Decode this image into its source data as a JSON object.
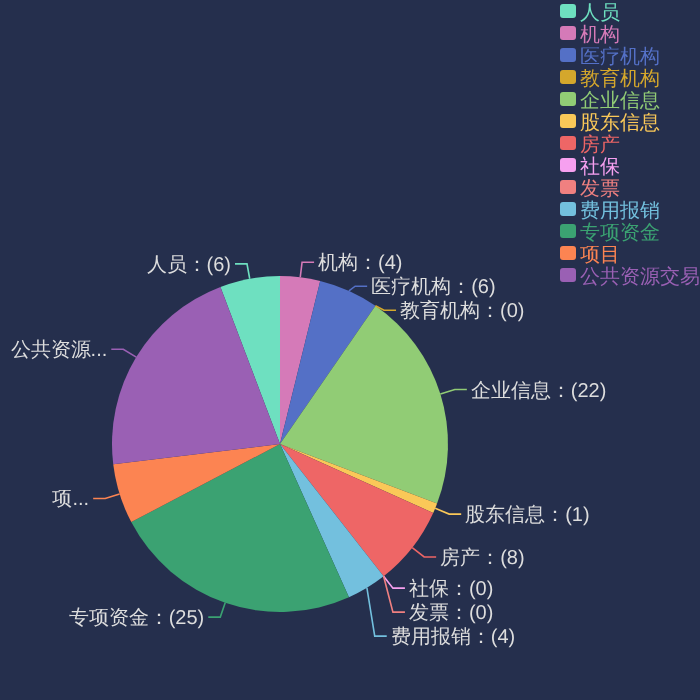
{
  "chart_data": {
    "type": "pie",
    "categories": [
      "人员",
      "机构",
      "医疗机构",
      "教育机构",
      "企业信息",
      "股东信息",
      "房产",
      "社保",
      "发票",
      "费用报销",
      "专项资金",
      "项目",
      "公共资源交易"
    ],
    "values": [
      6,
      4,
      6,
      0,
      22,
      1,
      8,
      0,
      0,
      4,
      25,
      6,
      22
    ],
    "colors": [
      "#6ee0c0",
      "#d57ab8",
      "#5470c6",
      "#d4a72c",
      "#91cc75",
      "#fac858",
      "#ee6666",
      "#f6a0f0",
      "#f08080",
      "#73c0de",
      "#3ba272",
      "#fc8452",
      "#9a60b4"
    ],
    "value_labels": [
      "人员：(6)",
      "机构：(4)",
      "医疗机构：(6)",
      "教育机构：(0)",
      "企业信息：(22)",
      "股东信息：(1)",
      "房产：(8)",
      "社保：(0)",
      "发票：(0)",
      "费用报销：(4)",
      "专项资金：(25)",
      "项...",
      "公共资源..."
    ],
    "legend": "top right"
  }
}
